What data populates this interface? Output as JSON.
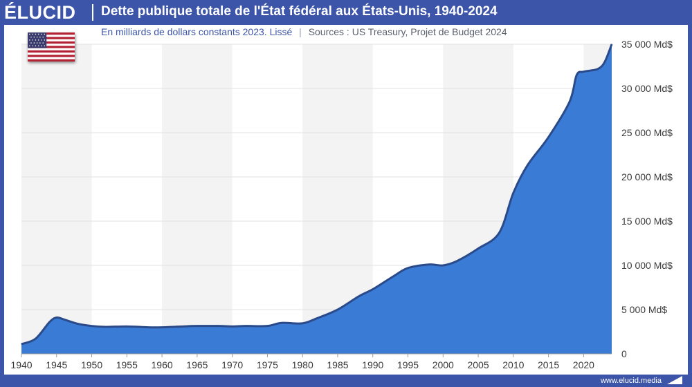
{
  "header": {
    "brand": "ÉLUCID",
    "title": "Dette publique totale de l'État fédéral aux États-Unis, 1940-2024",
    "subtitle": "En milliards de dollars constants 2023. Lissé",
    "subtitle_sep": "|",
    "sources": "Sources : US Treasury, Projet de Budget 2024"
  },
  "flag": {
    "icon": "us-flag-icon"
  },
  "footer": {
    "url": "www.elucid.media",
    "icon": "elucid-arrow-icon"
  },
  "colors": {
    "brand": "#3d55a8",
    "area": "#3a7bd5",
    "line": "#2a4a8a",
    "band": "#f3f3f3"
  },
  "chart_data": {
    "type": "area",
    "title": "Dette publique totale de l'État fédéral aux États-Unis, 1940-2024",
    "subtitle": "En milliards de dollars constants 2023. Lissé",
    "x": [
      1940,
      1942,
      1944,
      1945,
      1946,
      1948,
      1950,
      1952,
      1955,
      1958,
      1960,
      1963,
      1965,
      1968,
      1970,
      1972,
      1975,
      1977,
      1980,
      1982,
      1985,
      1988,
      1990,
      1993,
      1995,
      1998,
      2000,
      2002,
      2005,
      2008,
      2010,
      2012,
      2015,
      2018,
      2019,
      2020,
      2022,
      2023,
      2024
    ],
    "y": [
      1100,
      1700,
      3600,
      4100,
      3900,
      3400,
      3150,
      3050,
      3100,
      3000,
      3000,
      3100,
      3150,
      3150,
      3100,
      3150,
      3150,
      3500,
      3450,
      4000,
      5000,
      6500,
      7300,
      8800,
      9700,
      10100,
      10000,
      10500,
      11900,
      13700,
      18200,
      21300,
      24500,
      28500,
      31500,
      31900,
      32200,
      33000,
      35000
    ],
    "xlim": [
      1940,
      2024
    ],
    "ylim": [
      0,
      35000
    ],
    "x_ticks": [
      1940,
      1945,
      1950,
      1955,
      1960,
      1965,
      1970,
      1975,
      1980,
      1985,
      1990,
      1995,
      2000,
      2005,
      2010,
      2015,
      2020
    ],
    "y_ticks": [
      {
        "v": 0,
        "label": "0"
      },
      {
        "v": 5000,
        "label": "5 000 Md$"
      },
      {
        "v": 10000,
        "label": "10 000 Md$"
      },
      {
        "v": 15000,
        "label": "15 000 Md$"
      },
      {
        "v": 20000,
        "label": "20 000 Md$"
      },
      {
        "v": 25000,
        "label": "25 000 Md$"
      },
      {
        "v": 30000,
        "label": "30 000 Md$"
      },
      {
        "v": 35000,
        "label": "35 000 Md$"
      }
    ],
    "y_axis_position": "right",
    "grid": true,
    "alternating_bands": true,
    "legend": "none"
  }
}
